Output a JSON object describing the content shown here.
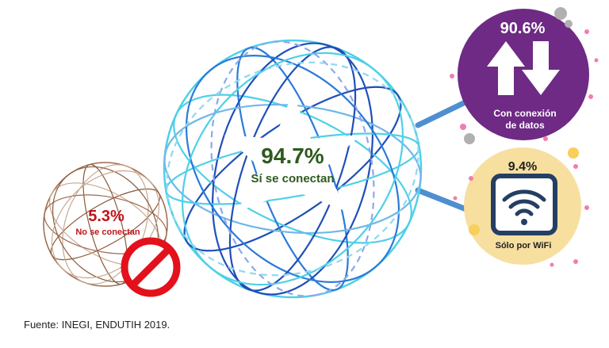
{
  "main": {
    "value": "94.7%",
    "label": "Sí se conectan"
  },
  "not_connected": {
    "value": "5.3%",
    "label": "No se conectan"
  },
  "data_connection": {
    "value": "90.6%",
    "label_line1": "Con conexión",
    "label_line2": "de datos"
  },
  "wifi_only": {
    "value": "9.4%",
    "label": "Sólo por WiFi"
  },
  "source": "Fuente: INEGI, ENDUTIH 2019.",
  "icons": {
    "arrows": "up-down-arrows-icon",
    "wifi": "wifi-icon",
    "prohibited": "prohibited-icon",
    "globe": "globe-icon"
  },
  "colors": {
    "globe_dark": "#1f4fb8",
    "globe_light": "#4fd0e8",
    "main_text": "#2e5a1e",
    "not_connected_text": "#c0141b",
    "prohibited_red": "#e3111b",
    "purple": "#6e2a84",
    "wifi_bg": "#f7dfa0",
    "wifi_dark": "#243f63",
    "connector": "#4f8fcf"
  }
}
